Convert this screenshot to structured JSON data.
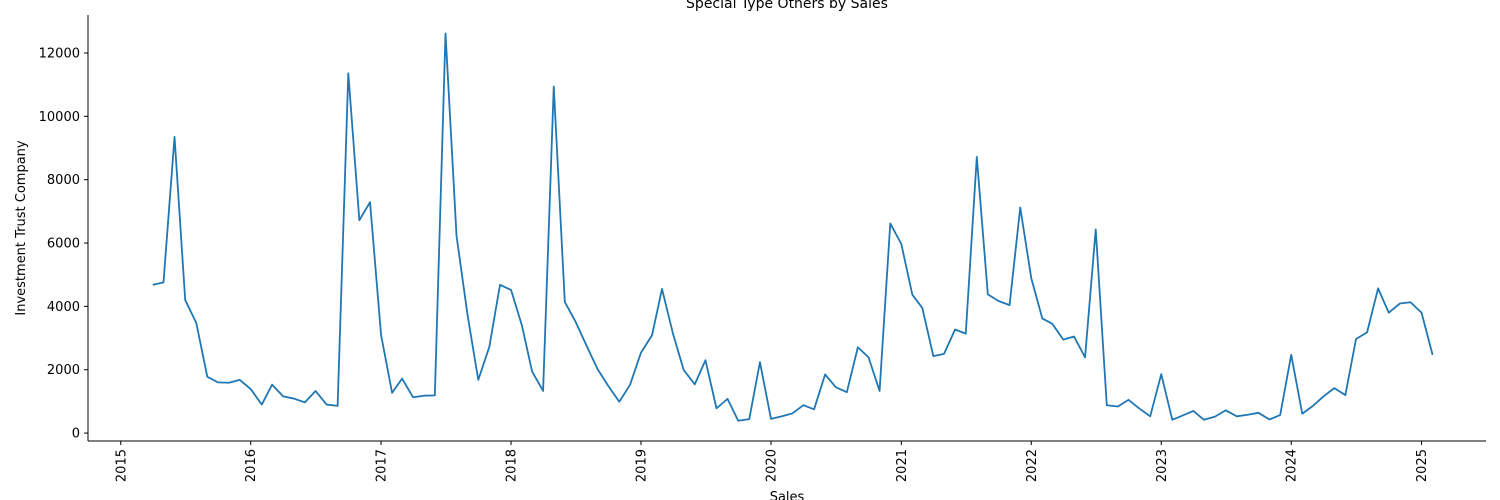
{
  "chart_data": {
    "type": "line",
    "title": "Special Type Others by Sales",
    "xlabel": "Sales",
    "ylabel": "Investment Trust Company",
    "xlim": [
      "2014-10-01",
      "2025-07-01"
    ],
    "ylim": [
      -250,
      13200
    ],
    "x_ticks": [
      {
        "date": "2015-01-01",
        "label": "2015"
      },
      {
        "date": "2016-01-01",
        "label": "2016"
      },
      {
        "date": "2017-01-01",
        "label": "2017"
      },
      {
        "date": "2018-01-01",
        "label": "2018"
      },
      {
        "date": "2019-01-01",
        "label": "2019"
      },
      {
        "date": "2020-01-01",
        "label": "2020"
      },
      {
        "date": "2021-01-01",
        "label": "2021"
      },
      {
        "date": "2022-01-01",
        "label": "2022"
      },
      {
        "date": "2023-01-01",
        "label": "2023"
      },
      {
        "date": "2024-01-01",
        "label": "2024"
      },
      {
        "date": "2025-01-01",
        "label": "2025"
      }
    ],
    "y_ticks": [
      {
        "value": 0,
        "label": "0"
      },
      {
        "value": 2000,
        "label": "2000"
      },
      {
        "value": 4000,
        "label": "4000"
      },
      {
        "value": 6000,
        "label": "6000"
      },
      {
        "value": 8000,
        "label": "8000"
      },
      {
        "value": 10000,
        "label": "10000"
      },
      {
        "value": 12000,
        "label": "12000"
      }
    ],
    "grid": false,
    "color": "#1f77b4",
    "series": [
      {
        "x": [
          "2015-04",
          "2015-05",
          "2015-06",
          "2015-07",
          "2015-08",
          "2015-09",
          "2015-10",
          "2015-11",
          "2015-12",
          "2016-01",
          "2016-02",
          "2016-03",
          "2016-04",
          "2016-05",
          "2016-06",
          "2016-07",
          "2016-08",
          "2016-09",
          "2016-10",
          "2016-11",
          "2016-12",
          "2017-01",
          "2017-02",
          "2017-03",
          "2017-04",
          "2017-05",
          "2017-06",
          "2017-07",
          "2017-08",
          "2017-09",
          "2017-10",
          "2017-11",
          "2017-12",
          "2018-01",
          "2018-02",
          "2018-03",
          "2018-04",
          "2018-05",
          "2018-06",
          "2018-07",
          "2018-08",
          "2018-09",
          "2018-10",
          "2018-11",
          "2018-12",
          "2019-01",
          "2019-02",
          "2019-03",
          "2019-04",
          "2019-05",
          "2019-06",
          "2019-07",
          "2019-08",
          "2019-09",
          "2019-10",
          "2019-11",
          "2019-12",
          "2020-01",
          "2020-02",
          "2020-03",
          "2020-04",
          "2020-05",
          "2020-06",
          "2020-07",
          "2020-08",
          "2020-09",
          "2020-10",
          "2020-11",
          "2020-12",
          "2021-01",
          "2021-02",
          "2021-03",
          "2021-04",
          "2021-05",
          "2021-06",
          "2021-07",
          "2021-08",
          "2021-09",
          "2021-10",
          "2021-11",
          "2021-12",
          "2022-01",
          "2022-02",
          "2022-03",
          "2022-04",
          "2022-05",
          "2022-06",
          "2022-07",
          "2022-08",
          "2022-09",
          "2022-10",
          "2022-11",
          "2022-12",
          "2023-01",
          "2023-02",
          "2023-03",
          "2023-04",
          "2023-05",
          "2023-06",
          "2023-07",
          "2023-08",
          "2023-09",
          "2023-10",
          "2023-11",
          "2023-12",
          "2024-01",
          "2024-02",
          "2024-03",
          "2024-04",
          "2024-05",
          "2024-06",
          "2024-07",
          "2024-08",
          "2024-09",
          "2024-10",
          "2024-11",
          "2024-12",
          "2025-01",
          "2025-02"
        ],
        "values": [
          4680,
          4760,
          9350,
          4200,
          3480,
          1780,
          1600,
          1590,
          1680,
          1390,
          900,
          1530,
          1160,
          1090,
          970,
          1330,
          900,
          860,
          11360,
          6720,
          7290,
          3100,
          1270,
          1720,
          1130,
          1180,
          1190,
          12620,
          6220,
          3720,
          1680,
          2720,
          4680,
          4520,
          3380,
          1950,
          1330,
          10940,
          4140,
          3520,
          2760,
          2020,
          1490,
          990,
          1520,
          2540,
          3090,
          4550,
          3130,
          1990,
          1540,
          2300,
          780,
          1080,
          390,
          440,
          2240,
          450,
          530,
          620,
          880,
          750,
          1850,
          1450,
          1290,
          2710,
          2390,
          1330,
          6620,
          5970,
          4370,
          3950,
          2430,
          2500,
          3270,
          3140,
          8720,
          4380,
          4170,
          4040,
          7120,
          4890,
          3620,
          3450,
          2950,
          3050,
          2390,
          6430,
          880,
          840,
          1050,
          770,
          530,
          1860,
          420,
          550,
          700,
          420,
          520,
          720,
          530,
          580,
          640,
          430,
          570,
          2470,
          610,
          850,
          1160,
          1420,
          1200,
          2970,
          3180,
          4570,
          3800,
          4090,
          4130,
          3800,
          2470
        ]
      }
    ]
  }
}
